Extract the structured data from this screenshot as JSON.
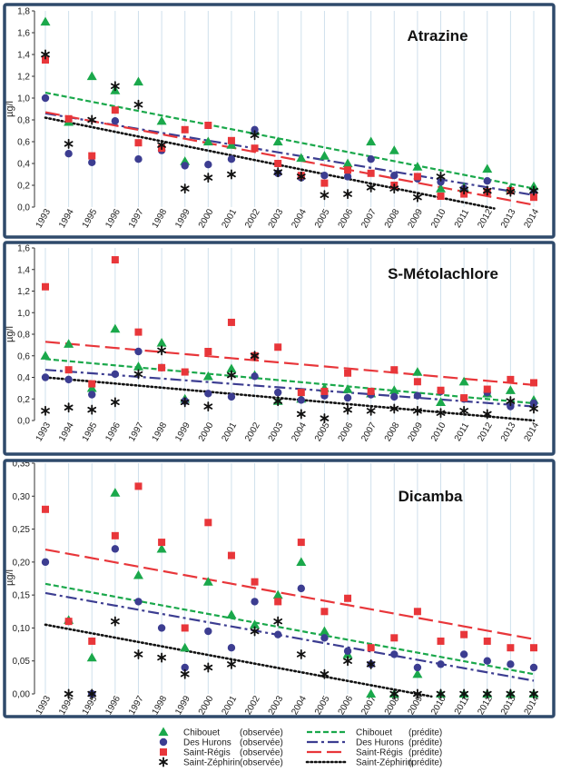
{
  "chart_data": [
    {
      "type": "scatter",
      "title": "Atrazine",
      "ylabel": "µg/l",
      "ylim": [
        0,
        1.8
      ],
      "yticks": [
        "0,0",
        "0,2",
        "0,4",
        "0,6",
        "0,8",
        "1,0",
        "1,2",
        "1,4",
        "1,6",
        "1,8"
      ],
      "x": [
        1993,
        1994,
        1995,
        1996,
        1997,
        1998,
        1999,
        2000,
        2001,
        2002,
        2003,
        2004,
        2005,
        2006,
        2007,
        2008,
        2009,
        2010,
        2011,
        2012,
        2013,
        2014
      ],
      "series": [
        {
          "key": "chibouet",
          "values": [
            1.7,
            0.78,
            1.2,
            1.07,
            1.15,
            0.79,
            0.42,
            0.6,
            0.57,
            0.7,
            0.6,
            0.45,
            0.47,
            0.4,
            0.6,
            0.52,
            0.37,
            0.17,
            0.18,
            0.35,
            0.17,
            0.19
          ]
        },
        {
          "key": "hurons",
          "values": [
            1.0,
            0.49,
            0.41,
            0.79,
            0.44,
            0.52,
            0.38,
            0.39,
            0.44,
            0.71,
            0.31,
            0.27,
            0.29,
            0.28,
            0.44,
            0.29,
            0.26,
            0.23,
            0.17,
            0.24,
            0.15,
            0.13
          ]
        },
        {
          "key": "regis",
          "values": [
            1.35,
            0.81,
            0.47,
            0.89,
            0.59,
            0.54,
            0.71,
            0.75,
            0.61,
            0.54,
            0.4,
            0.29,
            0.22,
            0.34,
            0.31,
            0.2,
            0.28,
            0.1,
            0.12,
            0.14,
            0.15,
            0.09
          ]
        },
        {
          "key": "zephirin",
          "values": [
            1.4,
            0.58,
            0.8,
            1.11,
            0.94,
            0.57,
            0.17,
            0.27,
            0.3,
            0.66,
            0.32,
            0.28,
            0.11,
            0.12,
            0.18,
            0.17,
            0.09,
            0.28,
            0.16,
            0.15,
            0.14,
            0.15
          ]
        }
      ],
      "trends": [
        {
          "key": "chibouet",
          "y1993": 1.05,
          "y2014": 0.17,
          "x_end": 2014
        },
        {
          "key": "hurons",
          "y1993": 0.86,
          "y2014": 0.11,
          "x_end": 2014
        },
        {
          "key": "regis",
          "y1993": 0.87,
          "y2014": 0.02,
          "x_end": 2014
        },
        {
          "key": "zephirin",
          "y1993": 0.82,
          "y2012": 0.0,
          "x_end": 2012.3
        }
      ]
    },
    {
      "type": "scatter",
      "title": "S-Métolachlore",
      "ylabel": "µg/l",
      "ylim": [
        0,
        1.6
      ],
      "yticks": [
        "0,0",
        "0,2",
        "0,4",
        "0,6",
        "0,8",
        "1,0",
        "1,2",
        "1,4",
        "1,6"
      ],
      "x": [
        1993,
        1994,
        1995,
        1996,
        1997,
        1998,
        1999,
        2000,
        2001,
        2002,
        2003,
        2004,
        2005,
        2006,
        2007,
        2008,
        2009,
        2010,
        2011,
        2012,
        2013,
        2014
      ],
      "series": [
        {
          "key": "chibouet",
          "values": [
            0.6,
            0.71,
            0.3,
            0.85,
            0.5,
            0.72,
            0.2,
            0.41,
            0.48,
            0.42,
            0.18,
            0.2,
            0.3,
            0.29,
            0.25,
            0.28,
            0.45,
            0.17,
            0.36,
            0.25,
            0.28,
            0.19
          ]
        },
        {
          "key": "hurons",
          "values": [
            0.4,
            0.38,
            0.24,
            0.43,
            0.64,
            0.49,
            0.18,
            0.25,
            0.22,
            0.41,
            0.26,
            0.19,
            0.23,
            0.21,
            0.24,
            0.22,
            0.23,
            0.27,
            0.2,
            0.26,
            0.13,
            0.16
          ]
        },
        {
          "key": "regis",
          "values": [
            1.24,
            0.47,
            0.34,
            1.49,
            0.82,
            0.49,
            0.45,
            0.64,
            0.91,
            0.6,
            0.68,
            0.26,
            0.27,
            0.44,
            0.27,
            0.47,
            0.36,
            0.28,
            0.21,
            0.29,
            0.38,
            0.35
          ]
        },
        {
          "key": "zephirin",
          "values": [
            0.09,
            0.12,
            0.1,
            0.17,
            0.43,
            0.65,
            0.17,
            0.13,
            0.42,
            0.6,
            0.18,
            0.06,
            0.02,
            0.1,
            0.09,
            0.11,
            0.09,
            0.07,
            0.09,
            0.06,
            0.18,
            0.11
          ]
        }
      ],
      "trends": [
        {
          "key": "chibouet",
          "y1993": 0.57,
          "y2014": 0.16,
          "x_end": 2014
        },
        {
          "key": "hurons",
          "y1993": 0.47,
          "y2014": 0.13,
          "x_end": 2014
        },
        {
          "key": "regis",
          "y1993": 0.73,
          "y2014": 0.33,
          "x_end": 2014
        },
        {
          "key": "zephirin",
          "y1993": 0.4,
          "y2014": 0.0,
          "x_end": 2014
        }
      ]
    },
    {
      "type": "scatter",
      "title": "Dicamba",
      "ylabel": "µg/l",
      "ylim": [
        0,
        0.35
      ],
      "yticks": [
        "0,00",
        "0,05",
        "0,10",
        "0,15",
        "0,20",
        "0,25",
        "0,30",
        "0,35"
      ],
      "x": [
        1993,
        1994,
        1995,
        1996,
        1997,
        1998,
        1999,
        2000,
        2001,
        2002,
        2003,
        2004,
        2005,
        2006,
        2007,
        2008,
        2009,
        2010,
        2011,
        2012,
        2013,
        2014
      ],
      "series": [
        {
          "key": "chibouet",
          "values": [
            null,
            0.112,
            0.055,
            0.305,
            0.18,
            0.22,
            0.07,
            0.17,
            0.12,
            0.105,
            0.15,
            0.2,
            0.095,
            0.06,
            0.0,
            0.0,
            0.03,
            0.0,
            0.0,
            0.0,
            0.0,
            0.0
          ]
        },
        {
          "key": "hurons",
          "values": [
            0.2,
            0.11,
            0.0,
            0.22,
            0.14,
            0.1,
            0.04,
            0.095,
            0.07,
            0.14,
            0.09,
            0.16,
            0.085,
            0.065,
            0.045,
            0.06,
            0.04,
            0.045,
            0.06,
            0.05,
            0.045,
            0.04
          ]
        },
        {
          "key": "regis",
          "values": [
            0.28,
            0.11,
            0.08,
            0.24,
            0.315,
            0.23,
            0.1,
            0.26,
            0.21,
            0.17,
            0.14,
            0.23,
            0.125,
            0.145,
            0.07,
            0.085,
            0.125,
            0.08,
            0.09,
            0.08,
            0.07,
            0.07
          ]
        },
        {
          "key": "zephirin",
          "values": [
            null,
            0.0,
            0.0,
            0.11,
            0.06,
            0.055,
            0.03,
            0.04,
            0.045,
            0.095,
            0.11,
            0.06,
            0.03,
            0.05,
            0.045,
            0.0,
            0.0,
            0.0,
            0.0,
            0.0,
            0.0,
            0.0
          ]
        }
      ],
      "trends": [
        {
          "key": "chibouet",
          "y1993": 0.167,
          "y2014": 0.03,
          "x_end": 2014
        },
        {
          "key": "hurons",
          "y1993": 0.153,
          "y2014": 0.02,
          "x_end": 2014
        },
        {
          "key": "regis",
          "y1993": 0.219,
          "y2014": 0.083,
          "x_end": 2014
        },
        {
          "key": "zephirin",
          "y1993": 0.105,
          "y2009": 0.0,
          "x_end": 2009.6
        }
      ]
    }
  ],
  "series_styles": {
    "chibouet": {
      "color": "#1aa84b",
      "marker": "triangle",
      "line": "dashed"
    },
    "hurons": {
      "color": "#3c3d91",
      "marker": "circle",
      "line": "dashdot"
    },
    "regis": {
      "color": "#e8363a",
      "marker": "square",
      "line": "longdash"
    },
    "zephirin": {
      "color": "#111111",
      "marker": "asterisk",
      "line": "dotted"
    }
  },
  "frame_color": "#2f4a6b",
  "legend": {
    "observed": [
      {
        "key": "chibouet",
        "name": "Chibouet",
        "tag": "(observée)"
      },
      {
        "key": "hurons",
        "name": "Des Hurons",
        "tag": "(observée)"
      },
      {
        "key": "regis",
        "name": "Saint-Régis",
        "tag": "(observée)"
      },
      {
        "key": "zephirin",
        "name": "Saint-Zéphirin",
        "tag": "(observée)"
      }
    ],
    "predicted": [
      {
        "key": "chibouet",
        "name": "Chibouet",
        "tag": "(prédite)"
      },
      {
        "key": "hurons",
        "name": "Des Hurons",
        "tag": "(prédite)"
      },
      {
        "key": "regis",
        "name": "Saint-Régis",
        "tag": "(prédite)"
      },
      {
        "key": "zephirin",
        "name": "Saint-Zéphirin",
        "tag": "(prédite)"
      }
    ]
  }
}
